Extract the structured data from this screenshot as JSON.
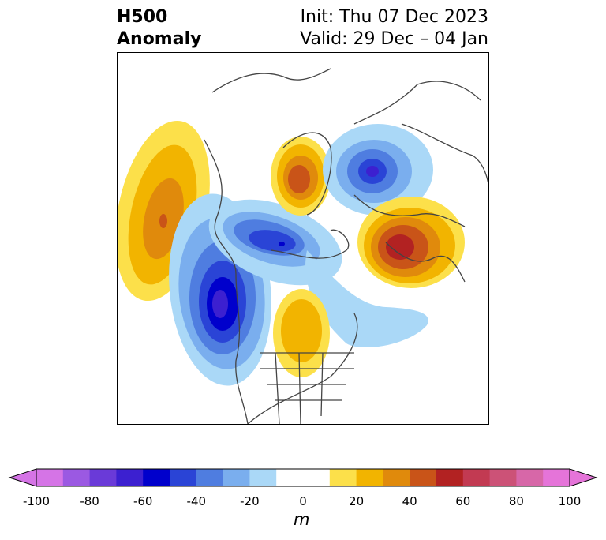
{
  "title": {
    "left_line1": "H500",
    "left_line2": "Anomaly",
    "init": "Init: Thu 07 Dec 2023",
    "valid": "Valid: 29 Dec – 04 Jan"
  },
  "colorbar": {
    "unit": "m",
    "range": [
      -100,
      100
    ],
    "step": 10,
    "ticks": [
      "-100",
      "-80",
      "-60",
      "-40",
      "-20",
      "0",
      "20",
      "40",
      "60",
      "80",
      "100"
    ],
    "colors": [
      "#d574e6",
      "#9b59e2",
      "#6a3ad8",
      "#3c20d0",
      "#0000cc",
      "#2a44d6",
      "#4f7de0",
      "#7aaeee",
      "#aad8f7",
      "#ffffff",
      "#ffffff",
      "#fce04a",
      "#f2b400",
      "#e08a0c",
      "#c95418",
      "#b22222",
      "#c23a52",
      "#cc5277",
      "#d767a8",
      "#e574d9"
    ],
    "extend": "both"
  },
  "map": {
    "projection": "polar stereographic",
    "region": "North America / Northern Hemisphere",
    "features": [
      {
        "label": "positive-anomaly-north-pacific",
        "sign": "positive",
        "peak_m": 60
      },
      {
        "label": "negative-anomaly-west-coast",
        "sign": "negative",
        "peak_m": -70
      },
      {
        "label": "negative-anomaly-western-canada-arctic",
        "sign": "negative",
        "peak_m": -60
      },
      {
        "label": "positive-anomaly-central-us",
        "sign": "positive",
        "peak_m": 30
      },
      {
        "label": "positive-anomaly-siberia",
        "sign": "positive",
        "peak_m": 50
      },
      {
        "label": "negative-anomaly-barents-kara",
        "sign": "negative",
        "peak_m": -60
      },
      {
        "label": "positive-anomaly-scandinavia-europe",
        "sign": "positive",
        "peak_m": 60
      },
      {
        "label": "negative-anomaly-north-atlantic",
        "sign": "negative",
        "peak_m": -20
      }
    ]
  }
}
